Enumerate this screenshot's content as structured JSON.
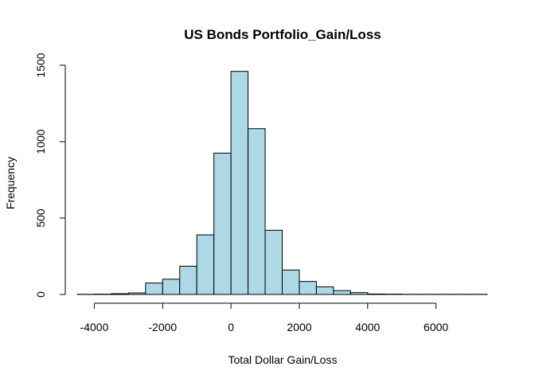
{
  "chart_data": {
    "type": "bar",
    "title": "US Bonds Portfolio_Gain/Loss",
    "xlabel": "Total Dollar Gain/Loss",
    "ylabel": "Frequency",
    "bin_width": 500,
    "bin_starts": [
      -4500,
      -4000,
      -3500,
      -3000,
      -2500,
      -2000,
      -1500,
      -1000,
      -500,
      0,
      500,
      1000,
      1500,
      2000,
      2500,
      3000,
      3500,
      4000,
      4500,
      5000,
      5500,
      6000,
      6500,
      7000
    ],
    "values": [
      1,
      2,
      5,
      10,
      75,
      100,
      185,
      390,
      925,
      1460,
      1085,
      420,
      160,
      85,
      50,
      25,
      12,
      3,
      2,
      1,
      1,
      1,
      1,
      1
    ],
    "xlim": [
      -4500,
      7500
    ],
    "ylim": [
      0,
      1500
    ],
    "x_ticks": [
      -4000,
      -2000,
      0,
      2000,
      4000,
      6000
    ],
    "x_tick_labels": [
      "-4000",
      "-2000",
      "0",
      "2000",
      "4000",
      "6000"
    ],
    "y_ticks": [
      0,
      500,
      1000,
      1500
    ],
    "y_tick_labels": [
      "0",
      "500",
      "1000",
      "1500"
    ],
    "bar_color": "#add8e6",
    "border_color": "#000000",
    "grid": false,
    "legend": "none"
  }
}
